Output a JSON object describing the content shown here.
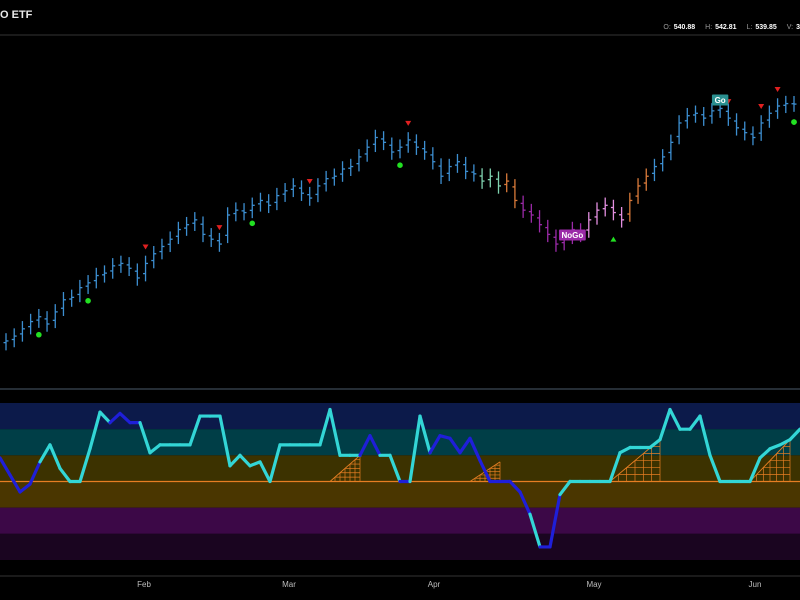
{
  "header": {
    "title": "O ETF",
    "ohlc": [
      {
        "key": "O:",
        "value": "540.88"
      },
      {
        "key": "H:",
        "value": "542.81"
      },
      {
        "key": "L:",
        "value": "539.85"
      },
      {
        "key": "V:",
        "value": "3"
      }
    ]
  },
  "chart_data": {
    "type": "bar",
    "x_ticks": [
      "Feb",
      "Mar",
      "Apr",
      "May",
      "Jun"
    ],
    "price_bars": {
      "y_range": [
        486,
        550
      ],
      "segments": [
        {
          "trend": "strong_go",
          "color": "#3d8fd1",
          "values": [
            492,
            493,
            494.5,
            496,
            497,
            495.5,
            498,
            500.5,
            501,
            503,
            504,
            505.5,
            506,
            507.5,
            508,
            507,
            505,
            508,
            510,
            511.5,
            513,
            515,
            516,
            517,
            514,
            513,
            512,
            518,
            519,
            518.5,
            520,
            521,
            520,
            522,
            523,
            524,
            522.5,
            521.5,
            524,
            525.5,
            526,
            527.5,
            528,
            530,
            532,
            534,
            533,
            531,
            532,
            533.5,
            532,
            531,
            529,
            526,
            528,
            529,
            527,
            526.5
          ]
        },
        {
          "trend": "go_fading",
          "color": "#7fd3b0",
          "values": [
            525,
            526,
            524
          ]
        },
        {
          "trend": "go_ending",
          "color": "#d97a3a",
          "values": [
            525,
            521
          ]
        },
        {
          "trend": "nogo",
          "color": "#9b2aa8",
          "values": [
            519,
            518,
            516,
            514,
            512,
            513,
            515,
            514
          ]
        },
        {
          "trend": "weak_nogo",
          "color": "#e38fe0",
          "values": [
            517,
            519,
            520,
            518.5,
            517
          ]
        },
        {
          "trend": "go_start",
          "color": "#d97a3a",
          "values": [
            521,
            524,
            526
          ]
        },
        {
          "trend": "strong_go",
          "color": "#3d8fd1",
          "values": [
            528,
            530,
            533,
            537,
            538.5,
            539,
            538,
            539.5,
            540,
            538,
            536,
            535,
            534,
            537,
            539,
            540.5,
            541,
            540.9
          ]
        }
      ]
    },
    "signals": {
      "countertrend_green_dots": 6,
      "countertrend_red_triangles": 7,
      "nogo_marker_green_triangle": 1
    },
    "trend_labels": [
      {
        "text": "NoGo",
        "color": "#9b2aa8"
      },
      {
        "text": "Go",
        "color": "#2a8f8f"
      }
    ],
    "oscillator": {
      "y_range": [
        -6,
        6
      ],
      "zero_line_color": "#e67e22",
      "bands": [
        {
          "from": 4,
          "to": 6,
          "color": "#0c1a4a"
        },
        {
          "from": 2,
          "to": 4,
          "color": "#003e47"
        },
        {
          "from": 0,
          "to": 2,
          "color": "#3c3200"
        },
        {
          "from": -2,
          "to": 0,
          "color": "#4a3600"
        },
        {
          "from": -4,
          "to": -2,
          "color": "#3c0847"
        },
        {
          "from": -6,
          "to": -4,
          "color": "#1a0520"
        }
      ],
      "values": [
        1.8,
        0.5,
        -0.8,
        -0.2,
        1.5,
        2.8,
        1.0,
        0.0,
        0.0,
        2.5,
        5.3,
        4.5,
        5.2,
        4.5,
        4.5,
        2.2,
        2.8,
        2.8,
        2.8,
        2.8,
        5.0,
        5.0,
        5.0,
        1.2,
        2.0,
        1.2,
        1.5,
        0.0,
        2.8,
        2.8,
        2.8,
        2.8,
        2.8,
        5.5,
        2.0,
        2.0,
        2.0,
        3.5,
        2.0,
        2.0,
        0.0,
        0.0,
        5.0,
        2.2,
        3.5,
        3.3,
        2.2,
        3.3,
        1.6,
        0.0,
        0.0,
        0.0,
        -0.8,
        -2.5,
        -5.0,
        -5.0,
        -1.0,
        0.0,
        0.0,
        0.0,
        0.0,
        0.0,
        2.2,
        2.6,
        2.6,
        2.6,
        3.2,
        5.5,
        4.0,
        4.0,
        5.0,
        2.0,
        0.0,
        0.0,
        0.0,
        0.0,
        1.8,
        2.5,
        2.8,
        3.2,
        4.0
      ],
      "segment_colors": {
        "strong": "#33d6d6",
        "weak": "#1f1fd9"
      },
      "weak_ranges": [
        [
          0,
          4
        ],
        [
          11,
          14
        ],
        [
          36,
          38
        ],
        [
          40,
          41
        ],
        [
          43,
          53
        ],
        [
          54,
          56
        ]
      ],
      "rising_wedges": [
        [
          33,
          36
        ],
        [
          47,
          50
        ],
        [
          61,
          66
        ],
        [
          75,
          79
        ]
      ]
    }
  }
}
